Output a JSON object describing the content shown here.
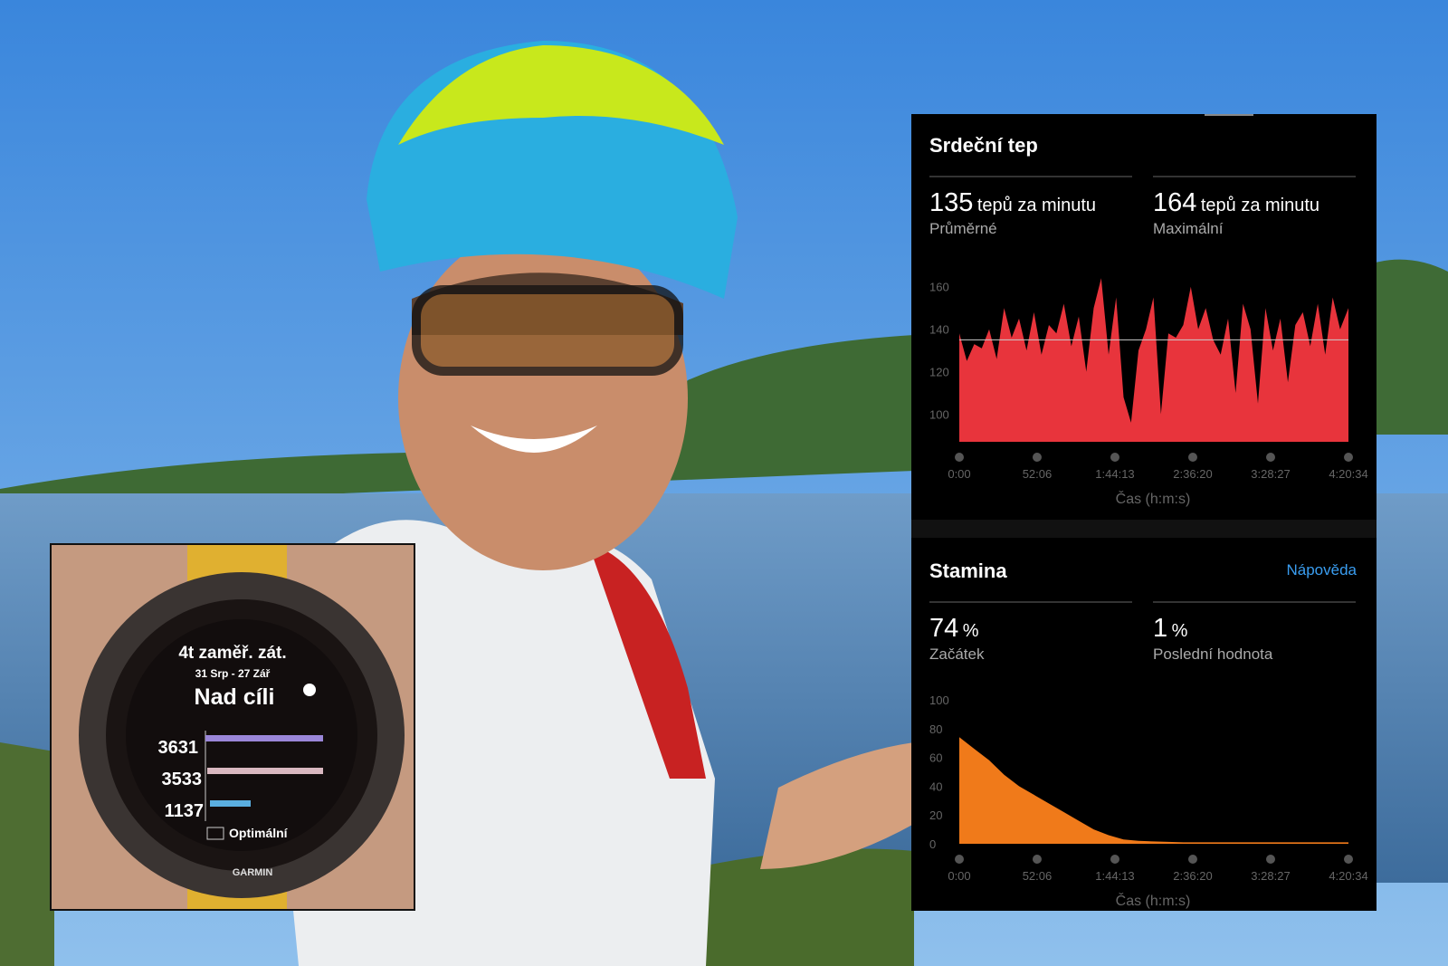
{
  "heart_rate": {
    "title": "Srdeční tep",
    "avg_value": "135",
    "avg_unit": "tepů za minutu",
    "avg_label": "Průměrné",
    "max_value": "164",
    "max_unit": "tepů za minutu",
    "max_label": "Maximální",
    "y_ticks": [
      "160",
      "140",
      "120",
      "100"
    ],
    "x_ticks": [
      "0:00",
      "52:06",
      "1:44:13",
      "2:36:20",
      "3:28:27",
      "4:20:34"
    ],
    "x_label": "Čas (h:m:s)",
    "color": "#e8343c"
  },
  "stamina": {
    "title": "Stamina",
    "help_link": "Nápověda",
    "start_value": "74",
    "start_unit": "%",
    "start_label": "Začátek",
    "last_value": "1",
    "last_unit": "%",
    "last_label": "Poslední hodnota",
    "y_ticks": [
      "100",
      "80",
      "60",
      "40",
      "20",
      "0"
    ],
    "x_ticks": [
      "0:00",
      "52:06",
      "1:44:13",
      "2:36:20",
      "3:28:27",
      "4:20:34"
    ],
    "x_label": "Čas (h:m:s)",
    "color": "#f07a1a"
  },
  "watch": {
    "brand": "GARMIN",
    "title": "4t zaměř. zát.",
    "date_range": "31 Srp - 27 Zář",
    "status": "Nad cíli",
    "rows": [
      {
        "value": "3631",
        "color": "#9a86d8"
      },
      {
        "value": "3533",
        "color": "#d9b8c0"
      },
      {
        "value": "1137",
        "color": "#5aaee0"
      }
    ],
    "legend": "Optimální"
  },
  "chart_data": [
    {
      "type": "area",
      "title": "Srdeční tep",
      "xlabel": "Čas (h:m:s)",
      "ylabel": "",
      "ylim": [
        87,
        165
      ],
      "xlim": [
        "0:00",
        "4:20:34"
      ],
      "average_line": 135,
      "grid": false,
      "points": [
        [
          "0:00",
          138
        ],
        [
          "5:00",
          125
        ],
        [
          "10:00",
          133
        ],
        [
          "15:00",
          131
        ],
        [
          "20:00",
          140
        ],
        [
          "25:00",
          126
        ],
        [
          "30:00",
          150
        ],
        [
          "35:00",
          136
        ],
        [
          "40:00",
          145
        ],
        [
          "45:00",
          130
        ],
        [
          "50:00",
          148
        ],
        [
          "55:00",
          128
        ],
        [
          "1:00:00",
          142
        ],
        [
          "1:05:00",
          138
        ],
        [
          "1:10:00",
          152
        ],
        [
          "1:15:00",
          132
        ],
        [
          "1:20:00",
          146
        ],
        [
          "1:25:00",
          120
        ],
        [
          "1:30:00",
          150
        ],
        [
          "1:35:00",
          164
        ],
        [
          "1:40:00",
          128
        ],
        [
          "1:45:00",
          155
        ],
        [
          "1:50:00",
          108
        ],
        [
          "1:55:00",
          96
        ],
        [
          "2:00:00",
          130
        ],
        [
          "2:05:00",
          140
        ],
        [
          "2:10:00",
          155
        ],
        [
          "2:15:00",
          100
        ],
        [
          "2:20:00",
          138
        ],
        [
          "2:25:00",
          136
        ],
        [
          "2:30:00",
          142
        ],
        [
          "2:35:00",
          160
        ],
        [
          "2:40:00",
          140
        ],
        [
          "2:45:00",
          150
        ],
        [
          "2:50:00",
          135
        ],
        [
          "2:55:00",
          128
        ],
        [
          "3:00:00",
          145
        ],
        [
          "3:05:00",
          110
        ],
        [
          "3:10:00",
          152
        ],
        [
          "3:15:00",
          140
        ],
        [
          "3:20:00",
          105
        ],
        [
          "3:25:00",
          150
        ],
        [
          "3:30:00",
          130
        ],
        [
          "3:35:00",
          145
        ],
        [
          "3:40:00",
          115
        ],
        [
          "3:45:00",
          142
        ],
        [
          "3:50:00",
          148
        ],
        [
          "3:55:00",
          132
        ],
        [
          "4:00:00",
          152
        ],
        [
          "4:05:00",
          128
        ],
        [
          "4:10:00",
          155
        ],
        [
          "4:15:00",
          140
        ],
        [
          "4:20:34",
          150
        ]
      ]
    },
    {
      "type": "area",
      "title": "Stamina",
      "xlabel": "Čas (h:m:s)",
      "ylabel": "",
      "ylim": [
        0,
        100
      ],
      "xlim": [
        "0:00",
        "4:20:34"
      ],
      "grid": false,
      "points": [
        [
          "0:00",
          74
        ],
        [
          "10:00",
          66
        ],
        [
          "20:00",
          58
        ],
        [
          "30:00",
          48
        ],
        [
          "40:00",
          40
        ],
        [
          "50:00",
          34
        ],
        [
          "1:00:00",
          28
        ],
        [
          "1:10:00",
          22
        ],
        [
          "1:20:00",
          16
        ],
        [
          "1:30:00",
          10
        ],
        [
          "1:40:00",
          6
        ],
        [
          "1:50:00",
          3
        ],
        [
          "2:00:00",
          2
        ],
        [
          "2:30:00",
          1
        ],
        [
          "3:30:00",
          1
        ],
        [
          "4:20:34",
          1
        ]
      ]
    }
  ]
}
